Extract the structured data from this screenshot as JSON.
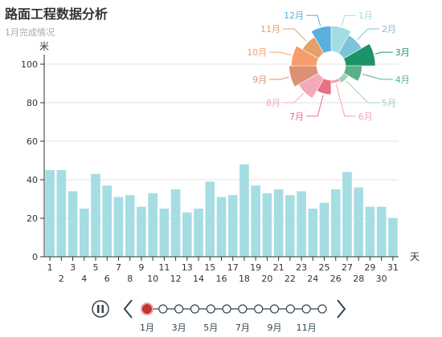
{
  "header": {
    "title": "路面工程数据分析",
    "subtitle": "1月完成情况"
  },
  "chart_data": [
    {
      "type": "bar",
      "ylabel": "米",
      "xlabel": "天",
      "ylim": [
        0,
        100
      ],
      "yticks": [
        0,
        20,
        40,
        60,
        80,
        100
      ],
      "grid": true,
      "color": "#a6dde3",
      "categories": [
        "1",
        "2",
        "3",
        "4",
        "5",
        "6",
        "7",
        "8",
        "9",
        "10",
        "11",
        "12",
        "13",
        "14",
        "15",
        "16",
        "17",
        "18",
        "19",
        "20",
        "21",
        "22",
        "23",
        "24",
        "25",
        "26",
        "27",
        "28",
        "29",
        "30",
        "31"
      ],
      "values": [
        45,
        45,
        34,
        25,
        43,
        37,
        31,
        32,
        26,
        33,
        25,
        35,
        23,
        25,
        39,
        31,
        32,
        48,
        37,
        33,
        35,
        32,
        34,
        25,
        28,
        35,
        44,
        36,
        26,
        26,
        20
      ]
    },
    {
      "type": "pie",
      "subtype": "rose",
      "categories": [
        "1月",
        "2月",
        "3月",
        "4月",
        "5月",
        "6月",
        "7月",
        "8月",
        "9月",
        "10月",
        "11月",
        "12月"
      ],
      "values": [
        38,
        36,
        40,
        34,
        29,
        28,
        33,
        37,
        39,
        38,
        35,
        38
      ],
      "colors": [
        "#a3dce2",
        "#7cc4d6",
        "#1c9468",
        "#5bb08b",
        "#9fd4b4",
        "#f1a3ad",
        "#e96f84",
        "#f2a9b8",
        "#dc9074",
        "#f69d6b",
        "#e6a168",
        "#5aafdd"
      ]
    }
  ],
  "timeline": {
    "labels": [
      "1月",
      "3月",
      "5月",
      "7月",
      "9月",
      "11月"
    ],
    "count": 12,
    "current_index": 0,
    "active_color": "#c23531",
    "line_color": "#304654"
  }
}
